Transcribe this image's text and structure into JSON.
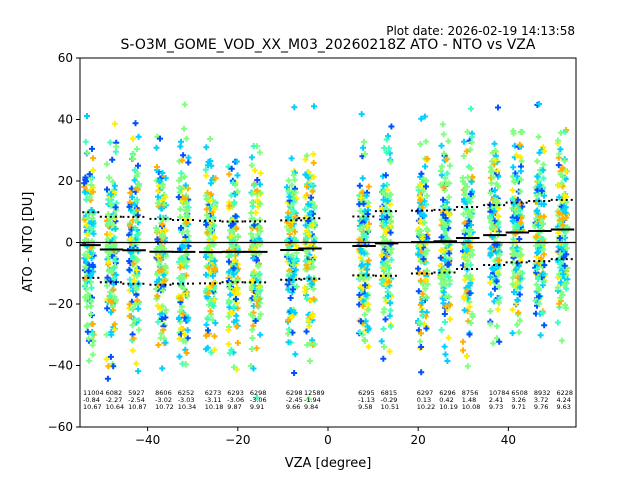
{
  "chart_data": {
    "type": "scatter",
    "plot_date": "Plot date: 2026-02-19 14:13:58",
    "title": "S-O3M_GOME_VOD_XX_M03_20260218Z ATO - NTO vs VZA",
    "xlabel": "VZA [degree]",
    "ylabel": "ATO - NTO [DU]",
    "xlim": [
      -55,
      55
    ],
    "ylim": [
      -60,
      60
    ],
    "xticks": [
      -40,
      -20,
      0,
      20,
      40
    ],
    "yticks": [
      -60,
      -40,
      -20,
      0,
      20,
      40,
      60
    ],
    "zero_line": 0,
    "colors": {
      "light_green": "#7fff7f",
      "aqua_green": "#3dffc0",
      "cyan": "#00cfff",
      "blue": "#0050ff",
      "yellow": "#ffee00",
      "orange": "#ffb000",
      "mean_line": "#000000",
      "std_line": "#000000"
    },
    "bins": [
      {
        "vza": -53,
        "count": "11004",
        "mean": "-0.84",
        "std": "10.67",
        "mean_val": -0.84,
        "std_val": 10.67
      },
      {
        "vza": -48,
        "count": "6082",
        "mean": "-2.27",
        "std": "10.64",
        "mean_val": -2.27,
        "std_val": 10.64
      },
      {
        "vza": -43,
        "count": "5927",
        "mean": "-2.54",
        "std": "10.87",
        "mean_val": -2.54,
        "std_val": 10.87
      },
      {
        "vza": -37,
        "count": "8606",
        "mean": "-3.02",
        "std": "10.72",
        "mean_val": -3.02,
        "std_val": 10.72
      },
      {
        "vza": -32,
        "count": "6252",
        "mean": "-3.03",
        "std": "10.34",
        "mean_val": -3.03,
        "std_val": 10.34
      },
      {
        "vza": -26,
        "count": "6273",
        "mean": "-3.11",
        "std": "10.18",
        "mean_val": -3.11,
        "std_val": 10.18
      },
      {
        "vza": -21,
        "count": "6293",
        "mean": "-3.06",
        "std": "9.87",
        "mean_val": -3.06,
        "std_val": 9.87
      },
      {
        "vza": -16,
        "count": "6298",
        "mean": "-3.06",
        "std": "9.91",
        "mean_val": -3.06,
        "std_val": 9.91
      },
      {
        "vza": -8,
        "count": "6298",
        "mean": "-2.45",
        "std": "9.66",
        "mean_val": -2.45,
        "std_val": 9.66
      },
      {
        "vza": -4,
        "count": "12589",
        "mean": "-1.94",
        "std": "9.84",
        "mean_val": -1.94,
        "std_val": 9.84
      },
      {
        "vza": 8,
        "count": "6295",
        "mean": "-1.13",
        "std": "9.58",
        "mean_val": -1.13,
        "std_val": 9.58
      },
      {
        "vza": 13,
        "count": "6815",
        "mean": "-0.29",
        "std": "10.51",
        "mean_val": -0.29,
        "std_val": 10.51
      },
      {
        "vza": 21,
        "count": "6297",
        "mean": "0.13",
        "std": "10.22",
        "mean_val": 0.13,
        "std_val": 10.22
      },
      {
        "vza": 26,
        "count": "6296",
        "mean": "0.42",
        "std": "10.19",
        "mean_val": 0.42,
        "std_val": 10.19
      },
      {
        "vza": 31,
        "count": "8756",
        "mean": "1.48",
        "std": "10.08",
        "mean_val": 1.48,
        "std_val": 10.08
      },
      {
        "vza": 37,
        "count": "10784",
        "mean": "2.41",
        "std": "9.73",
        "mean_val": 2.41,
        "std_val": 9.73
      },
      {
        "vza": 42,
        "count": "6508",
        "mean": "3.26",
        "std": "9.71",
        "mean_val": 3.26,
        "std_val": 9.71
      },
      {
        "vza": 47,
        "count": "8932",
        "mean": "3.72",
        "std": "9.76",
        "mean_val": 3.72,
        "std_val": 9.76
      },
      {
        "vza": 52,
        "count": "6228",
        "mean": "4.24",
        "std": "9.63",
        "mean_val": 4.24,
        "std_val": 9.63
      }
    ]
  }
}
